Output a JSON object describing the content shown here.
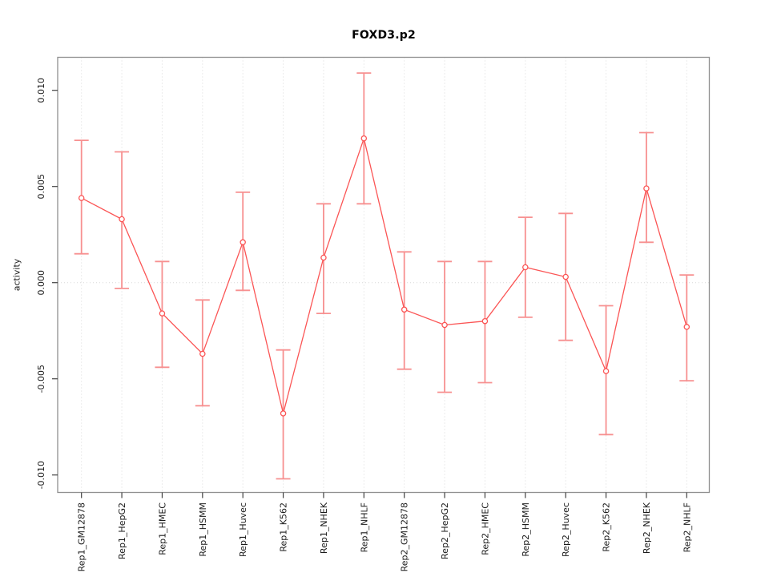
{
  "chart_data": {
    "type": "line",
    "title": "FOXD3.p2",
    "xlabel": "",
    "ylabel": "activity",
    "legend": "none",
    "grid": "vertical dotted gridlines at each category; dotted horizontal line at y=0",
    "ylim": [
      -0.0109,
      0.0117
    ],
    "yticks": [
      {
        "value": -0.01,
        "label": "-0.010"
      },
      {
        "value": -0.005,
        "label": "-0.005"
      },
      {
        "value": 0.0,
        "label": "0.000"
      },
      {
        "value": 0.005,
        "label": "0.005"
      },
      {
        "value": 0.01,
        "label": "0.010"
      }
    ],
    "categories": [
      "Rep1_GM12878",
      "Rep1_HepG2",
      "Rep1_HMEC",
      "Rep1_HSMM",
      "Rep1_Huvec",
      "Rep1_K562",
      "Rep1_NHEK",
      "Rep1_NHLF",
      "Rep2_GM12878",
      "Rep2_HepG2",
      "Rep2_HMEC",
      "Rep2_HSMM",
      "Rep2_Huvec",
      "Rep2_K562",
      "Rep2_NHEK",
      "Rep2_NHLF"
    ],
    "series": [
      {
        "name": "activity",
        "marker": "open-circle",
        "values": [
          0.0044,
          0.0033,
          -0.0016,
          -0.0037,
          0.0021,
          -0.0068,
          0.0013,
          0.0075,
          -0.0014,
          -0.0022,
          -0.002,
          0.0008,
          0.0003,
          -0.0046,
          0.0049,
          -0.0023
        ],
        "error_low": [
          0.0015,
          -0.0003,
          -0.0044,
          -0.0064,
          -0.0004,
          -0.0102,
          -0.0016,
          0.0041,
          -0.0045,
          -0.0057,
          -0.0052,
          -0.0018,
          -0.003,
          -0.0079,
          0.0021,
          -0.0051
        ],
        "error_high": [
          0.0074,
          0.0068,
          0.0011,
          -0.0009,
          0.0047,
          -0.0035,
          0.0041,
          0.0109,
          0.0016,
          0.0011,
          0.0011,
          0.0034,
          0.0036,
          -0.0012,
          0.0078,
          0.0004
        ]
      }
    ],
    "colors": {
      "line": "#fb5555",
      "marker": "#fb5555",
      "error_bar": "#f79090",
      "grid": "#d9d9d9",
      "box": "#909090",
      "tick": "#404040",
      "text": "#1a1a1a"
    }
  }
}
